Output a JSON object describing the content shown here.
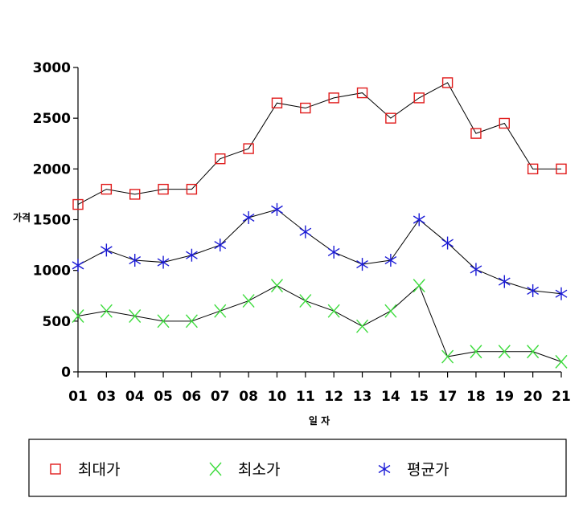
{
  "chart_data": {
    "type": "line",
    "xlabel": "일 자",
    "ylabel": "가격",
    "ylim": [
      0,
      3000
    ],
    "yticks": [
      0,
      500,
      1000,
      1500,
      2000,
      2500,
      3000
    ],
    "grid": false,
    "legend_placement": "bottom",
    "categories": [
      "01",
      "03",
      "04",
      "05",
      "06",
      "07",
      "08",
      "10",
      "11",
      "12",
      "13",
      "14",
      "15",
      "17",
      "18",
      "19",
      "20",
      "21"
    ],
    "series": [
      {
        "name": "최대가",
        "marker": "square",
        "color": "#e01b1b",
        "values": [
          1650,
          1800,
          1750,
          1800,
          1800,
          2100,
          2200,
          2650,
          2600,
          2700,
          2750,
          2500,
          2700,
          2850,
          2350,
          2450,
          2000,
          2000
        ]
      },
      {
        "name": "최소가",
        "marker": "x",
        "color": "#3ddc3d",
        "values": [
          550,
          600,
          550,
          500,
          500,
          600,
          700,
          850,
          700,
          600,
          450,
          600,
          850,
          150,
          200,
          200,
          200,
          100
        ]
      },
      {
        "name": "평균가",
        "marker": "asterisk",
        "color": "#1a1ad6",
        "values": [
          1050,
          1200,
          1100,
          1080,
          1150,
          1250,
          1520,
          1600,
          1380,
          1180,
          1060,
          1100,
          1500,
          1270,
          1010,
          890,
          800,
          770
        ]
      }
    ]
  }
}
